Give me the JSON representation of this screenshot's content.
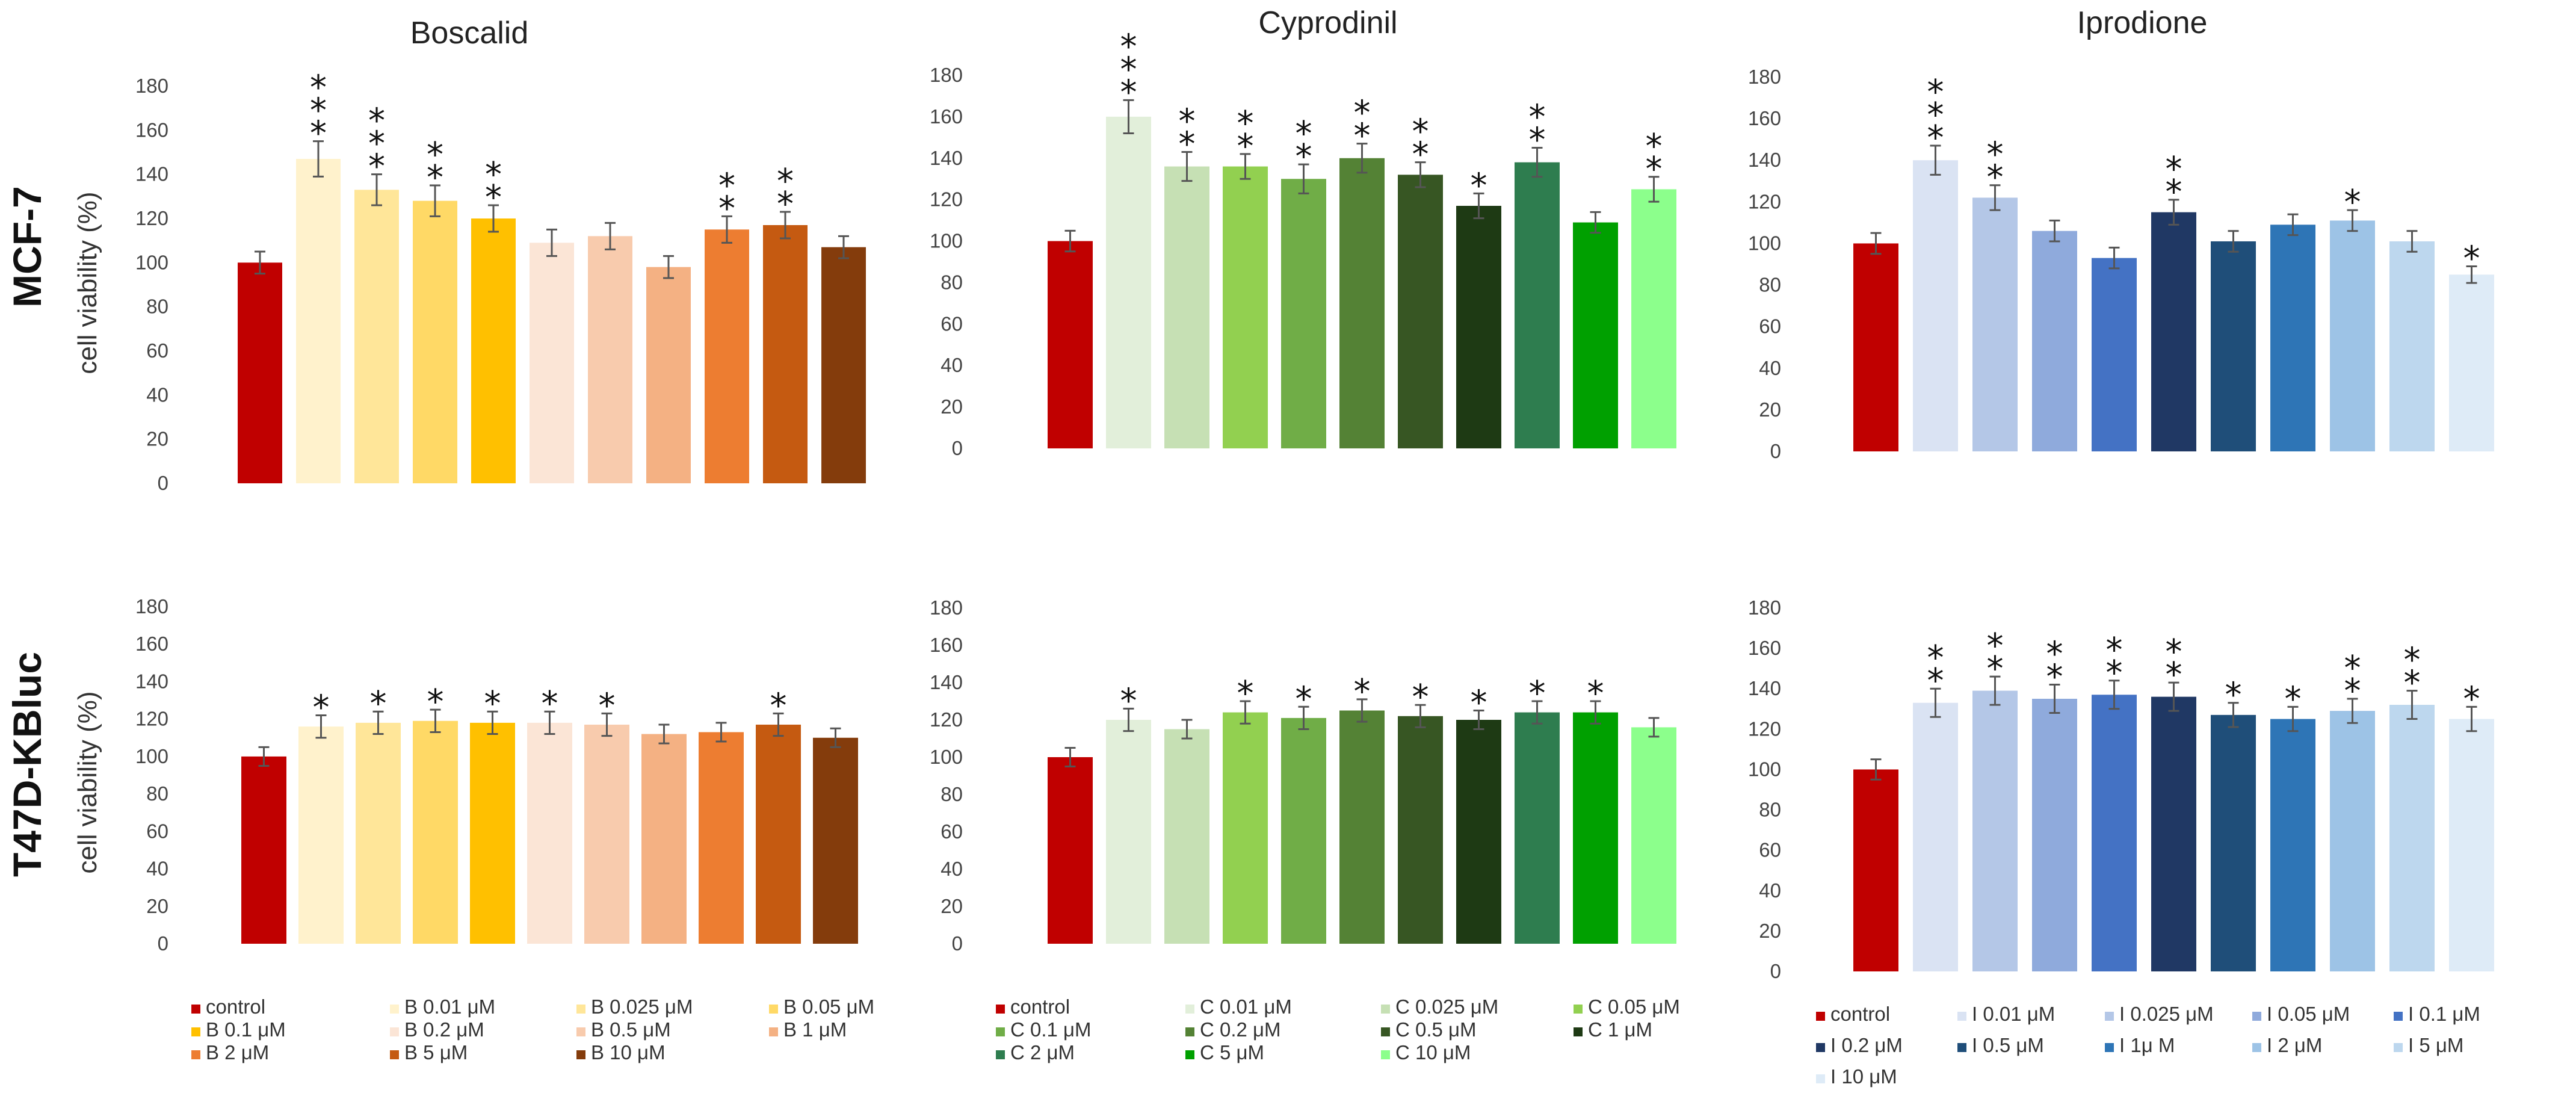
{
  "row_titles": [
    "MCF-7",
    "T47D-KBluc"
  ],
  "chart_data": [
    {
      "type": "bar",
      "title": "Boscalid",
      "ylabel": "cell viability (%)",
      "ylim": [
        0,
        180
      ],
      "yticks": [
        "0",
        "20",
        "40",
        "60",
        "80",
        "100",
        "120",
        "140",
        "160",
        "180"
      ],
      "categories": [
        "control",
        "B 0.01 μM",
        "B 0.025 μM",
        "B 0.05 μM",
        "B 0.1 μM",
        "B 0.2 μM",
        "B 0.5 μM",
        "B 1 μM",
        "B 2 μM",
        "B 5 μM",
        "B 10 μM"
      ],
      "colors": [
        "#c00000",
        "#fff2cc",
        "#ffe699",
        "#ffd966",
        "#ffc000",
        "#fbe5d6",
        "#f8cbad",
        "#f4b183",
        "#ed7d31",
        "#c55a11",
        "#843c0c"
      ],
      "values": [
        100,
        147,
        133,
        128,
        120,
        109,
        112,
        98,
        115,
        117,
        107
      ],
      "errors": [
        5,
        8,
        7,
        7,
        6,
        6,
        6,
        5,
        6,
        6,
        5
      ],
      "significance": [
        "",
        "***",
        "***",
        "**",
        "**",
        "",
        "",
        "",
        "**",
        "**",
        ""
      ]
    },
    {
      "type": "bar",
      "title": "Cyprodinil",
      "ylabel": "",
      "ylim": [
        0,
        180
      ],
      "yticks": [
        "0",
        "20",
        "40",
        "60",
        "80",
        "100",
        "120",
        "140",
        "160",
        "180"
      ],
      "categories": [
        "control",
        "C 0.01 μM",
        "C 0.025 μM",
        "C 0.05 μM",
        "C 0.1 μM",
        "C 0.2 μM",
        "C 0.5 μM",
        "C 1 μM",
        "C 2 μM",
        "C 5 μM",
        "C 10 μM"
      ],
      "colors": [
        "#c00000",
        "#e2efda",
        "#c6e0b4",
        "#92d050",
        "#70ad47",
        "#548235",
        "#375623",
        "#1e3a14",
        "#2e7d4f",
        "#00a000",
        "#8cff8c"
      ],
      "values": [
        100,
        160,
        136,
        136,
        130,
        140,
        132,
        117,
        138,
        109,
        125
      ],
      "errors": [
        5,
        8,
        7,
        6,
        7,
        7,
        6,
        6,
        7,
        5,
        6
      ],
      "significance": [
        "",
        "***",
        "**",
        "**",
        "**",
        "**",
        "**",
        "*",
        "**",
        "",
        "**"
      ]
    },
    {
      "type": "bar",
      "title": "Iprodione",
      "ylabel": "",
      "ylim": [
        0,
        180
      ],
      "yticks": [
        "0",
        "20",
        "40",
        "60",
        "80",
        "100",
        "120",
        "140",
        "160",
        "180"
      ],
      "categories": [
        "control",
        "I 0.01 μM",
        "I 0.025 μM",
        "I 0.05 μM",
        "I 0.1 μM",
        "I 0.2 μM",
        "I 0.5 μM",
        "I 1μ M",
        "I 2 μM",
        "I 5 μM",
        "I 10 μM"
      ],
      "colors": [
        "#c00000",
        "#dae3f3",
        "#b4c7e7",
        "#8faadc",
        "#4472c4",
        "#203864",
        "#1f4e79",
        "#2e75b6",
        "#9dc3e6",
        "#bdd7ee",
        "#deebf7"
      ],
      "values": [
        100,
        140,
        122,
        106,
        93,
        115,
        101,
        109,
        111,
        101,
        85
      ],
      "errors": [
        5,
        7,
        6,
        5,
        5,
        6,
        5,
        5,
        5,
        5,
        4
      ],
      "significance": [
        "",
        "***",
        "**",
        "",
        "",
        "**",
        "",
        "",
        "*",
        "",
        "*"
      ]
    },
    {
      "type": "bar",
      "title": "",
      "ylabel": "cell viability (%)",
      "ylim": [
        0,
        180
      ],
      "yticks": [
        "0",
        "20",
        "40",
        "60",
        "80",
        "100",
        "120",
        "140",
        "160",
        "180"
      ],
      "categories": [
        "control",
        "B 0.01 μM",
        "B 0.025 μM",
        "B 0.05 μM",
        "B 0.1 μM",
        "B 0.2 μM",
        "B 0.5 μM",
        "B 1 μM",
        "B 2 μM",
        "B 5 μM",
        "B 10 μM"
      ],
      "colors": [
        "#c00000",
        "#fff2cc",
        "#ffe699",
        "#ffd966",
        "#ffc000",
        "#fbe5d6",
        "#f8cbad",
        "#f4b183",
        "#ed7d31",
        "#c55a11",
        "#843c0c"
      ],
      "values": [
        100,
        116,
        118,
        119,
        118,
        118,
        117,
        112,
        113,
        117,
        110
      ],
      "errors": [
        5,
        6,
        6,
        6,
        6,
        6,
        6,
        5,
        5,
        6,
        5
      ],
      "significance": [
        "",
        "*",
        "*",
        "*",
        "*",
        "*",
        "*",
        "",
        "",
        "*",
        ""
      ],
      "legend": [
        "control",
        "B 0.01 μM",
        "B 0.025 μM",
        "B 0.05 μM",
        "B 0.1 μM",
        "B 0.2 μM",
        "B 0.5 μM",
        "B 1 μM",
        "B 2 μM",
        "B 5 μM",
        "B 10 μM"
      ]
    },
    {
      "type": "bar",
      "title": "",
      "ylabel": "",
      "ylim": [
        0,
        180
      ],
      "yticks": [
        "0",
        "20",
        "40",
        "60",
        "80",
        "100",
        "120",
        "140",
        "160",
        "180"
      ],
      "categories": [
        "control",
        "C 0.01 μM",
        "C 0.025 μM",
        "C 0.05 μM",
        "C 0.1 μM",
        "C 0.2 μM",
        "C 0.5 μM",
        "C 1 μM",
        "C 2 μM",
        "C 5 μM",
        "C 10 μM"
      ],
      "colors": [
        "#c00000",
        "#e2efda",
        "#c6e0b4",
        "#92d050",
        "#70ad47",
        "#548235",
        "#375623",
        "#1e3a14",
        "#2e7d4f",
        "#00a000",
        "#8cff8c"
      ],
      "values": [
        100,
        120,
        115,
        124,
        121,
        125,
        122,
        120,
        124,
        124,
        116
      ],
      "errors": [
        5,
        6,
        5,
        6,
        6,
        6,
        6,
        5,
        6,
        6,
        5
      ],
      "significance": [
        "",
        "*",
        "",
        "*",
        "*",
        "*",
        "*",
        "*",
        "*",
        "*",
        ""
      ],
      "legend": [
        "control",
        "C 0.01 μM",
        "C 0.025 μM",
        "C 0.05 μM",
        "C 0.1 μM",
        "C 0.2 μM",
        "C 0.5 μM",
        "C 1 μM",
        "C 2 μM",
        "C 5 μM",
        "C 10 μM"
      ]
    },
    {
      "type": "bar",
      "title": "",
      "ylabel": "",
      "ylim": [
        0,
        180
      ],
      "yticks": [
        "0",
        "20",
        "40",
        "60",
        "80",
        "100",
        "120",
        "140",
        "160",
        "180"
      ],
      "categories": [
        "control",
        "I 0.01 μM",
        "I 0.025 μM",
        "I 0.05 μM",
        "I 0.1 μM",
        "I 0.2 μM",
        "I 0.5 μM",
        "I 1μ M",
        "I 2 μM",
        "I 5 μM",
        "I 10 μM"
      ],
      "colors": [
        "#c00000",
        "#dae3f3",
        "#b4c7e7",
        "#8faadc",
        "#4472c4",
        "#203864",
        "#1f4e79",
        "#2e75b6",
        "#9dc3e6",
        "#bdd7ee",
        "#deebf7"
      ],
      "values": [
        100,
        133,
        139,
        135,
        137,
        136,
        127,
        125,
        129,
        132,
        125
      ],
      "errors": [
        5,
        7,
        7,
        7,
        7,
        7,
        6,
        6,
        6,
        7,
        6
      ],
      "significance": [
        "",
        "**",
        "**",
        "**",
        "**",
        "**",
        "*",
        "*",
        "**",
        "**",
        "*"
      ],
      "legend": [
        "control",
        "I 0.01 μM",
        "I 0.025 μM",
        "I 0.05 μM",
        "I 0.1 μM",
        "I 0.2 μM",
        "I 0.5 μM",
        "I 1μ M",
        "I 2 μM",
        "I 5 μM",
        "I 10 μM"
      ]
    }
  ]
}
